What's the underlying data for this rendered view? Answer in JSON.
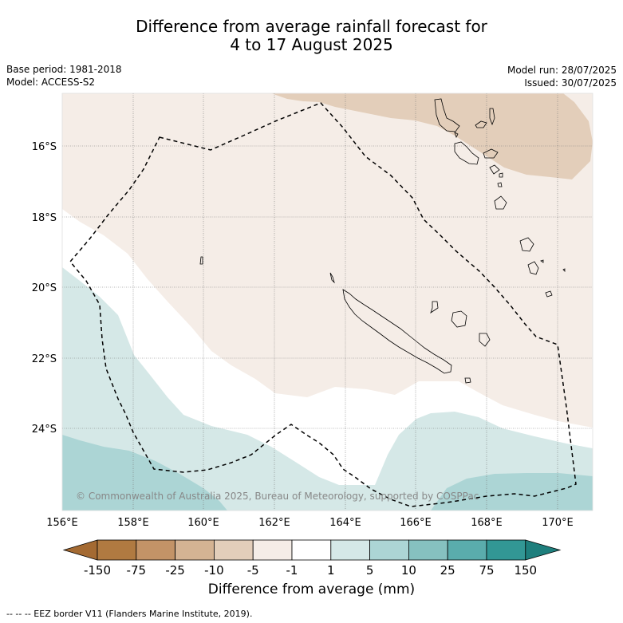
{
  "header": {
    "title_line1": "Difference from average rainfall forecast for",
    "title_line2": "4 to 17 August 2025",
    "base_period": "Base period: 1981-2018",
    "model": "Model: ACCESS-S2",
    "model_run": "Model run: 28/07/2025",
    "issued": "Issued: 30/07/2025"
  },
  "map": {
    "lon_ticks": [
      "156°E",
      "158°E",
      "160°E",
      "162°E",
      "164°E",
      "166°E",
      "168°E",
      "170°E"
    ],
    "lat_ticks": [
      "16°S",
      "18°S",
      "20°S",
      "22°S",
      "24°S"
    ],
    "copyright": "© Commonwealth of Australia 2025, Bureau of Meteorology, supported by COSPPac"
  },
  "colorbar": {
    "tick_labels": [
      "-150",
      "-75",
      "-25",
      "-10",
      "-5",
      "-1",
      "1",
      "5",
      "10",
      "25",
      "75",
      "150"
    ],
    "colors": [
      "#a46a32",
      "#b07a41",
      "#c39367",
      "#d4b393",
      "#e3ceba",
      "#f5ede7",
      "#ffffff",
      "#d5e8e7",
      "#acd5d5",
      "#86c1c0",
      "#5aacac",
      "#329795",
      "#1e7f7d"
    ],
    "label": "Difference from average (mm)"
  },
  "footnote": "--  --  -- EEZ border V11 (Flanders Marine Institute, 2019)."
}
